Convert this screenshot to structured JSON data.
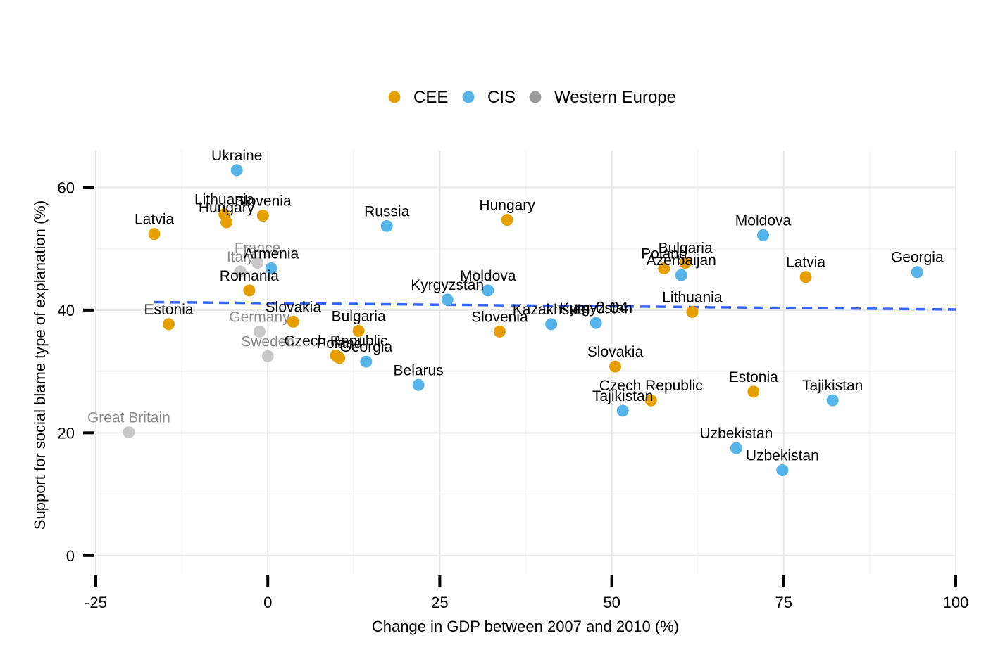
{
  "chart_data": {
    "type": "scatter",
    "xlabel": "Change in GDP between 2007 and 2010 (%)",
    "ylabel": "Support for social blame type of explanation (%)",
    "xlim": [
      -25,
      100
    ],
    "ylim": [
      -3,
      66
    ],
    "x_ticks": [
      -25,
      0,
      25,
      50,
      75,
      100
    ],
    "x_tick_labels": [
      "-25",
      "0",
      "25",
      "50",
      "75",
      "100"
    ],
    "y_ticks": [
      0,
      20,
      40,
      60
    ],
    "y_tick_labels": [
      "0",
      "20",
      "40",
      "60"
    ],
    "grid": true,
    "legend_position": "top",
    "groups": [
      {
        "name": "CEE",
        "color": "#E69F00"
      },
      {
        "name": "CIS",
        "color": "#56B4E9"
      },
      {
        "name": "Western Europe",
        "color": "#999999"
      }
    ],
    "points": [
      {
        "label": "Ukraine",
        "group": "CIS",
        "x": -4.5,
        "y": 62.8
      },
      {
        "label": "Lithuania",
        "group": "CEE",
        "x": -6.3,
        "y": 55.6
      },
      {
        "label": "Hungary",
        "group": "CEE",
        "x": -6.0,
        "y": 54.3
      },
      {
        "label": "Slovenia",
        "group": "CEE",
        "x": -0.7,
        "y": 55.4
      },
      {
        "label": "Latvia",
        "group": "CEE",
        "x": -16.5,
        "y": 52.4
      },
      {
        "label": "France",
        "group": "Western Europe",
        "x": -1.5,
        "y": 47.7
      },
      {
        "label": "Italy",
        "group": "Western Europe",
        "x": -4.0,
        "y": 46.3
      },
      {
        "label": "Armenia",
        "group": "CIS",
        "x": 0.5,
        "y": 46.8
      },
      {
        "label": "Romania",
        "group": "CEE",
        "x": -2.7,
        "y": 43.2
      },
      {
        "label": "Estonia",
        "group": "CEE",
        "x": -14.4,
        "y": 37.7
      },
      {
        "label": "Germany",
        "group": "Western Europe",
        "x": -1.2,
        "y": 36.5
      },
      {
        "label": "Slovakia",
        "group": "CEE",
        "x": 3.7,
        "y": 38.1
      },
      {
        "label": "Sweden",
        "group": "Western Europe",
        "x": 0.0,
        "y": 32.5
      },
      {
        "label": "Czech Republic",
        "group": "CEE",
        "x": 9.9,
        "y": 32.6
      },
      {
        "label": "Poland",
        "group": "CEE",
        "x": 10.4,
        "y": 32.2
      },
      {
        "label": "Bulgaria",
        "group": "CEE",
        "x": 13.2,
        "y": 36.6
      },
      {
        "label": "Georgia",
        "group": "CIS",
        "x": 14.3,
        "y": 31.6
      },
      {
        "label": "Great Britain",
        "group": "Western Europe",
        "x": -20.2,
        "y": 20.1
      },
      {
        "label": "Russia",
        "group": "CIS",
        "x": 17.3,
        "y": 53.7
      },
      {
        "label": "Belarus",
        "group": "CIS",
        "x": 21.9,
        "y": 27.8
      },
      {
        "label": "Kyrgyzstan",
        "group": "CIS",
        "x": 26.1,
        "y": 41.7
      },
      {
        "label": "Moldova",
        "group": "CIS",
        "x": 32.0,
        "y": 43.2
      },
      {
        "label": "Hungary",
        "group": "CEE",
        "x": 34.8,
        "y": 54.7
      },
      {
        "label": "Slovenia",
        "group": "CEE",
        "x": 33.7,
        "y": 36.5
      },
      {
        "label": "Kazakhstan",
        "group": "CIS",
        "x": 41.2,
        "y": 37.7
      },
      {
        "label": "Kyrgyzstan",
        "group": "CIS",
        "x": 47.7,
        "y": 37.9
      },
      {
        "label": "Slovakia",
        "group": "CEE",
        "x": 50.5,
        "y": 30.8
      },
      {
        "label": "Czech Republic",
        "group": "CEE",
        "x": 55.7,
        "y": 25.3
      },
      {
        "label": "Tajikistan",
        "group": "CIS",
        "x": 51.6,
        "y": 23.6
      },
      {
        "label": "Poland",
        "group": "CEE",
        "x": 57.6,
        "y": 46.8
      },
      {
        "label": "Bulgaria",
        "group": "CEE",
        "x": 60.7,
        "y": 47.7
      },
      {
        "label": "Azerbaijan",
        "group": "CIS",
        "x": 60.1,
        "y": 45.7
      },
      {
        "label": "Lithuania",
        "group": "CEE",
        "x": 61.7,
        "y": 39.7
      },
      {
        "label": "Moldova",
        "group": "CIS",
        "x": 72.0,
        "y": 52.2
      },
      {
        "label": "Latvia",
        "group": "CEE",
        "x": 78.2,
        "y": 45.4
      },
      {
        "label": "Estonia",
        "group": "CEE",
        "x": 70.6,
        "y": 26.7
      },
      {
        "label": "Uzbekistan",
        "group": "CIS",
        "x": 68.1,
        "y": 17.5
      },
      {
        "label": "Uzbekistan",
        "group": "CIS",
        "x": 74.8,
        "y": 13.9
      },
      {
        "label": "Tajikistan",
        "group": "CIS",
        "x": 82.1,
        "y": 25.3
      },
      {
        "label": "Georgia",
        "group": "CIS",
        "x": 94.4,
        "y": 46.2
      }
    ],
    "trend_line": {
      "x": [
        -16.5,
        100
      ],
      "y": [
        41.3,
        40.1
      ],
      "color": "#3366FF",
      "style": "dashed"
    },
    "annotation": {
      "text": "r=-0.04",
      "x": 48.5,
      "y": 40.4
    }
  }
}
